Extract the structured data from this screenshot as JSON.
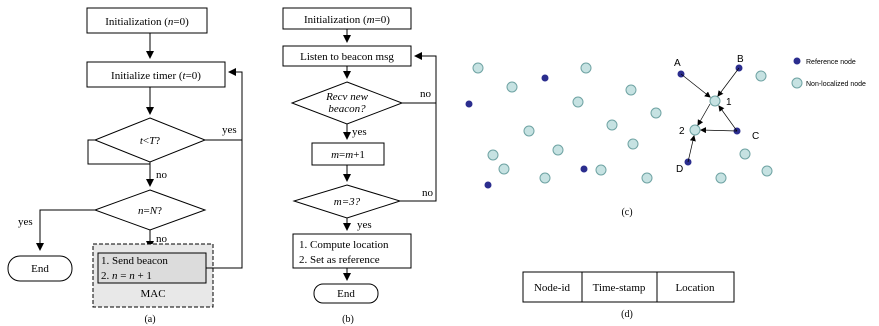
{
  "panel_a": {
    "caption": "(a)",
    "init": [
      "Initialization (",
      "n",
      "=0)"
    ],
    "timer": [
      "Initialize timer (",
      "t",
      "=0)"
    ],
    "cond_t": [
      "t",
      "<",
      "T",
      "?"
    ],
    "cond_n": [
      "n",
      "=",
      "N",
      "?"
    ],
    "yes_t": "yes",
    "no_t": "no",
    "yes_n": "yes",
    "no_n": "no",
    "end": "End",
    "step1": "1. Send beacon",
    "step2": [
      "2. ",
      "n",
      " = ",
      "n",
      " + 1"
    ],
    "mac": "MAC"
  },
  "panel_b": {
    "caption": "(b)",
    "init": [
      "Initialization (",
      "m",
      "=0)"
    ],
    "listen": "Listen to beacon msg",
    "recv1": "Recv new",
    "recv2": "beacon?",
    "no_recv": "no",
    "yes_recv": "yes",
    "incr": [
      "m",
      "=",
      "m",
      "+1"
    ],
    "cond_m": [
      "m",
      "=3?"
    ],
    "no_m": "no",
    "yes_m": "yes",
    "compute1": "1. Compute location",
    "compute2": "2. Set as reference",
    "end": "End"
  },
  "panel_c": {
    "caption": "(c)",
    "legend_ref": "Reference node",
    "legend_nonloc": "Non-localized node",
    "label_A": "A",
    "label_B": "B",
    "label_C": "C",
    "label_D": "D",
    "label_1": "1",
    "label_2": "2",
    "colors": {
      "reference": "#2b2d8e",
      "non_localized": "#c6e2e2",
      "non_localized_stroke": "#6fa3a3"
    }
  },
  "panel_d": {
    "caption": "(d)",
    "fields": [
      "Node-id",
      "Time-stamp",
      "Location"
    ]
  }
}
